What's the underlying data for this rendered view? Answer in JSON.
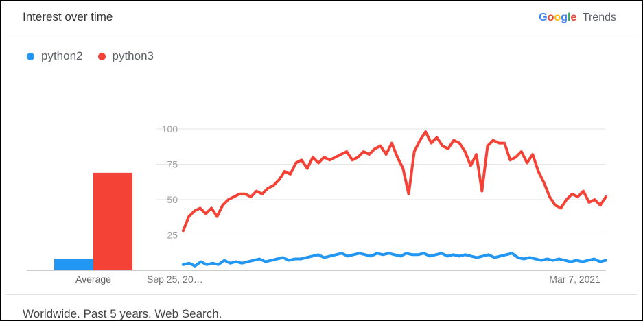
{
  "header": {
    "title": "Interest over time"
  },
  "brand": {
    "google": [
      "G",
      "o",
      "o",
      "g",
      "l",
      "e"
    ],
    "trends": "Trends"
  },
  "legend": [
    {
      "label": "python2",
      "color": "#2196f3"
    },
    {
      "label": "python3",
      "color": "#f44336"
    }
  ],
  "footer": {
    "text": "Worldwide. Past 5 years. Web Search."
  },
  "chart_data": {
    "type": "line",
    "ylim": [
      0,
      100
    ],
    "yticks": [
      "100",
      "75",
      "50",
      "25"
    ],
    "x_labels": [
      "Sep 25, 20…",
      "Mar 7, 2021"
    ],
    "average": {
      "label": "Average",
      "values": [
        8,
        69
      ]
    },
    "grid": true,
    "series": [
      {
        "name": "python2",
        "color": "#2196f3",
        "values": [
          4,
          5,
          3,
          6,
          4,
          5,
          4,
          7,
          5,
          6,
          5,
          6,
          7,
          8,
          6,
          7,
          8,
          9,
          7,
          8,
          8,
          9,
          10,
          11,
          9,
          10,
          11,
          12,
          10,
          11,
          12,
          11,
          10,
          12,
          11,
          12,
          11,
          10,
          12,
          11,
          11,
          12,
          10,
          11,
          12,
          10,
          11,
          10,
          11,
          10,
          9,
          10,
          11,
          9,
          10,
          11,
          12,
          9,
          8,
          9,
          8,
          7,
          8,
          7,
          8,
          7,
          6,
          7,
          6,
          7,
          8,
          6,
          7
        ]
      },
      {
        "name": "python3",
        "color": "#f44336",
        "values": [
          28,
          38,
          42,
          44,
          40,
          44,
          38,
          46,
          50,
          52,
          54,
          54,
          52,
          56,
          54,
          58,
          60,
          64,
          70,
          68,
          76,
          78,
          72,
          80,
          76,
          80,
          78,
          80,
          82,
          84,
          78,
          80,
          84,
          82,
          86,
          88,
          82,
          90,
          80,
          72,
          54,
          84,
          92,
          98,
          90,
          94,
          88,
          86,
          92,
          90,
          84,
          74,
          82,
          56,
          88,
          92,
          90,
          90,
          78,
          80,
          84,
          76,
          82,
          70,
          62,
          52,
          46,
          44,
          50,
          54,
          52,
          56,
          48,
          50,
          46,
          52
        ]
      }
    ]
  }
}
